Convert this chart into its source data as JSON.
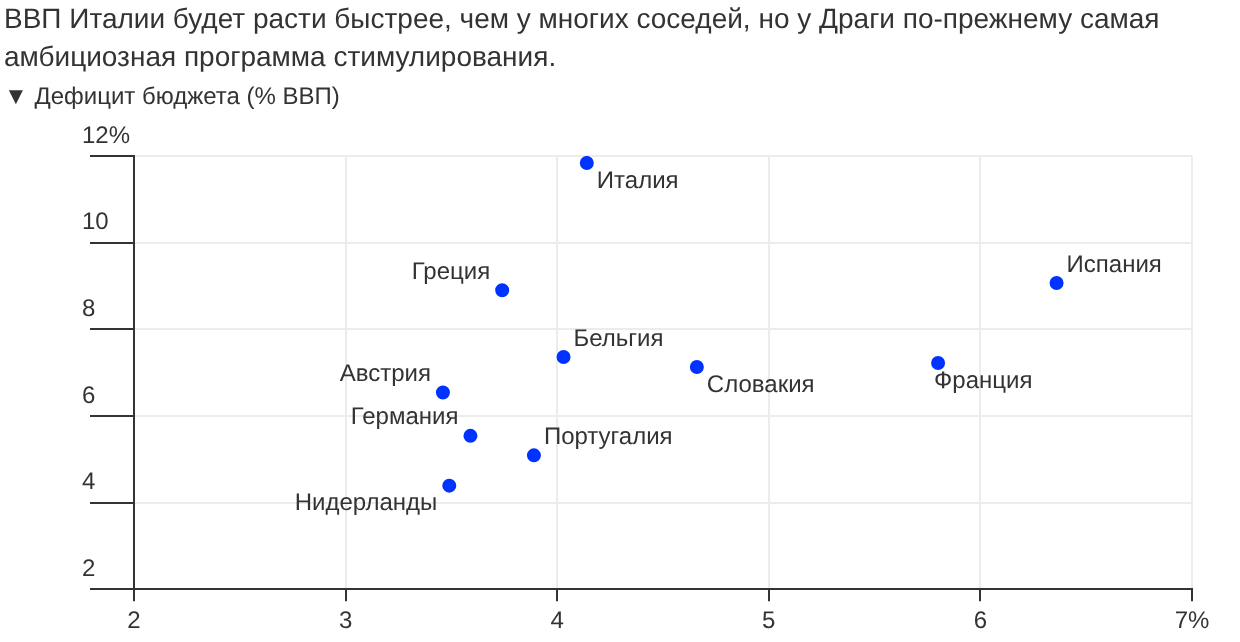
{
  "chart_data": {
    "type": "scatter",
    "title": "ВВП Италии будет расти быстрее, чем у многих соседей, но у Драги по-прежнему самая амбициозная программа стимулирования.",
    "ylabel": "▼ Дефицит бюджета (% ВВП)",
    "series": [
      {
        "color": "#0033ff",
        "x": [
          4.14,
          3.74,
          6.36,
          4.03,
          4.66,
          5.8,
          3.46,
          3.59,
          3.89,
          3.49
        ],
        "values": [
          11.84,
          8.9,
          9.07,
          7.36,
          7.13,
          7.22,
          6.54,
          5.54,
          5.09,
          4.39
        ]
      }
    ],
    "annotations": [
      {
        "text": "Италия",
        "x": 4.14,
        "y": 11.84
      },
      {
        "text": "Греция",
        "x": 3.74,
        "y": 8.9
      },
      {
        "text": "Испания",
        "x": 6.36,
        "y": 9.07
      },
      {
        "text": "Бельгия",
        "x": 4.03,
        "y": 7.36
      },
      {
        "text": "Словакия",
        "x": 4.66,
        "y": 7.13
      },
      {
        "text": "Франция",
        "x": 5.8,
        "y": 7.22
      },
      {
        "text": "Австрия",
        "x": 3.46,
        "y": 6.54
      },
      {
        "text": "Германия",
        "x": 3.59,
        "y": 5.54
      },
      {
        "text": "Португалия",
        "x": 3.89,
        "y": 5.09
      },
      {
        "text": "Нидерланды",
        "x": 3.49,
        "y": 4.39
      }
    ],
    "xlim": [
      2,
      7
    ],
    "xticks": [
      2,
      3,
      4,
      5,
      6,
      {
        "value": 7,
        "label": "7%"
      }
    ],
    "ylim": [
      2,
      12
    ],
    "yticks": [
      2,
      4,
      6,
      8,
      10,
      {
        "value": 12,
        "label": "12%"
      }
    ],
    "grid": true,
    "legend": false,
    "marker": "circle"
  }
}
